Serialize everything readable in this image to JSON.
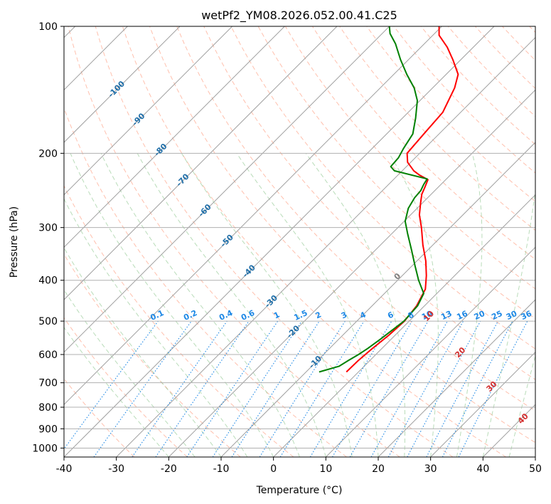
{
  "chart_data": {
    "type": "skew-t",
    "title": "wetPf2_YM08.2026.052.00.41.C25",
    "xlabel": "Temperature (°C)",
    "ylabel": "Pressure (hPa)",
    "xlim": [
      -40,
      50
    ],
    "ylim": [
      1050,
      100
    ],
    "x_ticks": [
      "-40",
      "-30",
      "-20",
      "-10",
      "0",
      "10",
      "20",
      "30",
      "40",
      "50"
    ],
    "y_ticks": [
      "100",
      "200",
      "300",
      "400",
      "500",
      "600",
      "700",
      "800",
      "900",
      "1000"
    ],
    "y_tick_values": [
      100,
      200,
      300,
      400,
      500,
      600,
      700,
      800,
      900,
      1000
    ],
    "colors": {
      "temperature": "#ff0000",
      "dewpoint": "#008000",
      "isotherm": "#a0a0a0",
      "dry_adiabat": "#ff8c69",
      "moist_adiabat": "#7fbf7f",
      "mixing_ratio": "#1e88e5",
      "isotherm_label": "#1f6ea8",
      "wetbulb_label": "#d32f2f"
    },
    "series": [
      {
        "name": "Temperature",
        "points": [
          [
            -2.3,
            660
          ],
          [
            -2.2,
            620
          ],
          [
            -1.8,
            580
          ],
          [
            -1.2,
            540
          ],
          [
            -0.9,
            500
          ],
          [
            -1.5,
            460
          ],
          [
            -3.0,
            420
          ],
          [
            -5.4,
            390
          ],
          [
            -8.3,
            360
          ],
          [
            -11.9,
            330
          ],
          [
            -15.5,
            300
          ],
          [
            -18.3,
            280
          ],
          [
            -20.4,
            262
          ],
          [
            -21.8,
            250
          ],
          [
            -22.6,
            240
          ],
          [
            -23.4,
            231
          ],
          [
            -26.0,
            225
          ],
          [
            -27.8,
            220
          ],
          [
            -30.6,
            210
          ],
          [
            -32.4,
            200
          ],
          [
            -32.9,
            180
          ],
          [
            -33.4,
            160
          ],
          [
            -35.8,
            140
          ],
          [
            -37.7,
            130
          ],
          [
            -41.5,
            120
          ],
          [
            -45.0,
            112
          ],
          [
            -48.8,
            105
          ],
          [
            -50.5,
            100
          ]
        ]
      },
      {
        "name": "Dewpoint",
        "points": [
          [
            -7.5,
            660
          ],
          [
            -4.8,
            640
          ],
          [
            -4.1,
            620
          ],
          [
            -3.3,
            600
          ],
          [
            -2.7,
            580
          ],
          [
            -2.0,
            550
          ],
          [
            -1.0,
            500
          ],
          [
            -1.3,
            460
          ],
          [
            -2.5,
            430
          ],
          [
            -6.0,
            400
          ],
          [
            -9.4,
            370
          ],
          [
            -13.0,
            340
          ],
          [
            -17.0,
            310
          ],
          [
            -19.8,
            290
          ],
          [
            -21.7,
            270
          ],
          [
            -22.5,
            255
          ],
          [
            -22.7,
            245
          ],
          [
            -23.3,
            237
          ],
          [
            -23.7,
            230
          ],
          [
            -31.5,
            220
          ],
          [
            -33.0,
            215
          ],
          [
            -33.2,
            205
          ],
          [
            -34.0,
            195
          ],
          [
            -35.0,
            180
          ],
          [
            -37.5,
            165
          ],
          [
            -40.5,
            150
          ],
          [
            -43.5,
            140
          ],
          [
            -47.5,
            130
          ],
          [
            -51.5,
            120
          ],
          [
            -55.5,
            110
          ],
          [
            -58.5,
            104
          ],
          [
            -60.0,
            100
          ]
        ]
      }
    ],
    "isotherm_labels": [
      "-100",
      "-90",
      "-80",
      "-70",
      "-60",
      "-50",
      "-40",
      "-30",
      "-20",
      "-10"
    ],
    "isotherm_label_values": [
      -100,
      -90,
      -80,
      -70,
      -60,
      -50,
      -40,
      -30,
      -20,
      -10
    ],
    "mixing_ratio_labels": [
      "0.1",
      "0.2",
      "0.4",
      "0.6",
      "1",
      "1.5",
      "2",
      "3",
      "4",
      "6",
      "8",
      "10",
      "13",
      "16",
      "20",
      "25",
      "30",
      "36"
    ],
    "wetbulb_labels": [
      "0",
      "10",
      "20",
      "30",
      "40"
    ]
  }
}
